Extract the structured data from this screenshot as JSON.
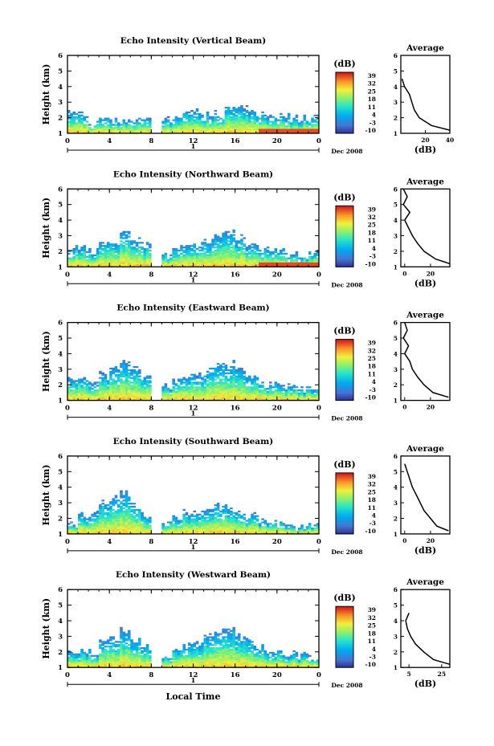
{
  "shared": {
    "height_label": "Height (km)",
    "date_label": "Dec 2008",
    "day_label": "1",
    "db_label": "(dB)",
    "average_title": "Average",
    "xlabel": "Local Time",
    "x_ticks": [
      "0",
      "4",
      "8",
      "12",
      "16",
      "20",
      "0"
    ],
    "y_ticks": [
      "1",
      "2",
      "3",
      "4",
      "5",
      "6"
    ],
    "colorbar_ticks": [
      "39",
      "32",
      "25",
      "18",
      "11",
      "4",
      "-3",
      "-10"
    ]
  },
  "chart_data": [
    {
      "type": "heatmap",
      "title": "Echo Intensity (Vertical Beam)",
      "xlabel": "",
      "ylabel": "Height (km)",
      "xlim": [
        0,
        24
      ],
      "ylim": [
        1,
        6
      ],
      "colorbar": {
        "label": "(dB)",
        "range": [
          -10,
          39
        ]
      },
      "echo_top_km": [
        2.3,
        2.3,
        1.8,
        1.8,
        1.8,
        1.8,
        1.8,
        1.8,
        0,
        1.8,
        2.0,
        2.3,
        2.4,
        2.2,
        2.3,
        2.7,
        2.6,
        2.5,
        2.3,
        2.2,
        2.1,
        2.0,
        1.9,
        2.0
      ],
      "average_profile": {
        "title": "Average",
        "xlabel": "(dB)",
        "x_ticks": [
          "20",
          "40"
        ],
        "xlim": [
          0,
          40
        ],
        "height_km": [
          4.5,
          4.0,
          3.5,
          3.0,
          2.5,
          2.0,
          1.5,
          1.2
        ],
        "db": [
          1,
          3,
          7,
          9,
          11,
          15,
          25,
          40
        ]
      }
    },
    {
      "type": "heatmap",
      "title": "Echo Intensity (Northward Beam)",
      "xlabel": "",
      "ylabel": "Height (km)",
      "xlim": [
        0,
        24
      ],
      "ylim": [
        1,
        6
      ],
      "colorbar": {
        "label": "(dB)",
        "range": [
          -10,
          39
        ]
      },
      "echo_top_km": [
        2.2,
        2.2,
        2.0,
        2.5,
        2.7,
        3.1,
        2.7,
        2.4,
        0,
        1.8,
        2.2,
        2.5,
        2.5,
        2.7,
        3.1,
        3.3,
        2.9,
        2.4,
        2.2,
        2.0,
        1.9,
        1.8,
        1.7,
        1.8
      ],
      "average_profile": {
        "title": "Average",
        "xlabel": "(dB)",
        "x_ticks": [
          "0",
          "20"
        ],
        "xlim": [
          -3,
          35
        ],
        "height_km": [
          6.0,
          5.5,
          5.0,
          4.5,
          4.0,
          3.5,
          3.0,
          2.5,
          2.0,
          1.5,
          1.2
        ],
        "db": [
          -1,
          2,
          -1,
          4,
          0,
          3,
          6,
          10,
          15,
          24,
          35
        ]
      }
    },
    {
      "type": "heatmap",
      "title": "Echo Intensity (Eastward Beam)",
      "xlabel": "",
      "ylabel": "Height (km)",
      "xlim": [
        0,
        24
      ],
      "ylim": [
        1,
        6
      ],
      "colorbar": {
        "label": "(dB)",
        "range": [
          -10,
          39
        ]
      },
      "echo_top_km": [
        2.3,
        2.5,
        2.2,
        2.6,
        2.9,
        3.4,
        3.0,
        2.6,
        0,
        1.9,
        2.4,
        2.7,
        2.6,
        2.9,
        3.3,
        3.3,
        2.9,
        2.5,
        2.3,
        2.0,
        1.9,
        1.8,
        1.7,
        1.8
      ],
      "average_profile": {
        "title": "Average",
        "xlabel": "",
        "x_ticks": [
          "0",
          "20"
        ],
        "xlim": [
          -3,
          35
        ],
        "height_km": [
          6.0,
          5.5,
          5.0,
          4.5,
          4.0,
          3.5,
          3.0,
          2.5,
          2.0,
          1.5,
          1.2
        ],
        "db": [
          0,
          2,
          -1,
          3,
          0,
          4,
          6,
          10,
          15,
          22,
          34
        ]
      }
    },
    {
      "type": "heatmap",
      "title": "Echo Intensity (Southward Beam)",
      "xlabel": "",
      "ylabel": "Height (km)",
      "xlim": [
        0,
        24
      ],
      "ylim": [
        1,
        6
      ],
      "colorbar": {
        "label": "(dB)",
        "range": [
          -10,
          39
        ]
      },
      "echo_top_km": [
        1.6,
        2.1,
        2.2,
        3.1,
        3.3,
        3.6,
        2.9,
        2.2,
        0,
        1.7,
        2.0,
        2.4,
        2.3,
        2.5,
        2.8,
        2.7,
        2.4,
        2.1,
        1.9,
        1.8,
        1.7,
        1.6,
        1.5,
        1.5
      ],
      "average_profile": {
        "title": "Average",
        "xlabel": "(dB)",
        "x_ticks": [
          "0",
          "20"
        ],
        "xlim": [
          -3,
          35
        ],
        "height_km": [
          5.5,
          5.0,
          4.5,
          4.0,
          3.5,
          3.0,
          2.5,
          2.0,
          1.5,
          1.2
        ],
        "db": [
          0,
          2,
          4,
          6,
          9,
          12,
          15,
          20,
          25,
          34
        ]
      }
    },
    {
      "type": "heatmap",
      "title": "Echo Intensity (Westward Beam)",
      "xlabel": "Local Time",
      "ylabel": "Height (km)",
      "xlim": [
        0,
        24
      ],
      "ylim": [
        1,
        6
      ],
      "colorbar": {
        "label": "(dB)",
        "range": [
          -10,
          39
        ]
      },
      "echo_top_km": [
        1.9,
        2.0,
        2.0,
        2.6,
        2.8,
        3.3,
        2.8,
        2.3,
        0,
        1.8,
        2.1,
        2.5,
        2.6,
        2.9,
        3.3,
        3.5,
        3.1,
        2.6,
        2.3,
        2.0,
        1.9,
        1.8,
        1.7,
        1.6
      ],
      "average_profile": {
        "title": "Average",
        "xlabel": "(dB)",
        "x_ticks": [
          "5",
          "25"
        ],
        "xlim": [
          0,
          30
        ],
        "height_km": [
          4.5,
          4.0,
          3.5,
          3.0,
          2.5,
          2.0,
          1.5,
          1.2
        ],
        "db": [
          5,
          3,
          4,
          6,
          9,
          14,
          20,
          30
        ]
      }
    }
  ]
}
